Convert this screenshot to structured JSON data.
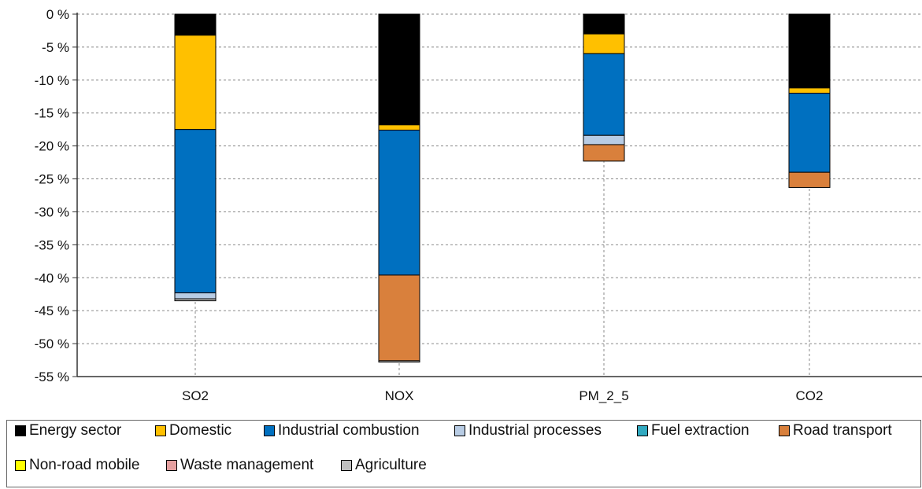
{
  "chart_data": {
    "type": "bar",
    "stacked": true,
    "categories": [
      "SO2",
      "NOX",
      "PM_2_5",
      "CO2"
    ],
    "ylim": [
      -55,
      0
    ],
    "yticks": [
      0,
      -5,
      -10,
      -15,
      -20,
      -25,
      -30,
      -35,
      -40,
      -45,
      -50,
      -55
    ],
    "ytick_suffix": " %",
    "grid": true,
    "legend_position": "bottom",
    "series": [
      {
        "name": "Energy sector",
        "color": "#000000",
        "values": [
          -3.2,
          -16.8,
          -3.0,
          -11.2
        ]
      },
      {
        "name": "Domestic",
        "color": "#FFC000",
        "values": [
          -14.3,
          -0.8,
          -3.0,
          -0.8
        ]
      },
      {
        "name": "Industrial combustion",
        "color": "#0070C0",
        "values": [
          -24.8,
          -22.0,
          -12.4,
          -12.0
        ]
      },
      {
        "name": "Industrial processes",
        "color": "#B8CCE4",
        "values": [
          -0.9,
          0,
          -1.4,
          0
        ]
      },
      {
        "name": "Fuel extraction",
        "color": "#31A9C0",
        "values": [
          0,
          0,
          0,
          0
        ]
      },
      {
        "name": "Road transport",
        "color": "#D9803C",
        "values": [
          0,
          -13.0,
          -2.5,
          -2.3
        ]
      },
      {
        "name": "Non-road mobile",
        "color": "#FFFF00",
        "values": [
          0,
          0,
          0,
          0
        ]
      },
      {
        "name": "Waste management",
        "color": "#E6A0A0",
        "values": [
          0,
          0,
          0,
          0
        ]
      },
      {
        "name": "Agriculture",
        "color": "#C0C0C0",
        "values": [
          -0.3,
          -0.2,
          0,
          0
        ]
      }
    ]
  }
}
